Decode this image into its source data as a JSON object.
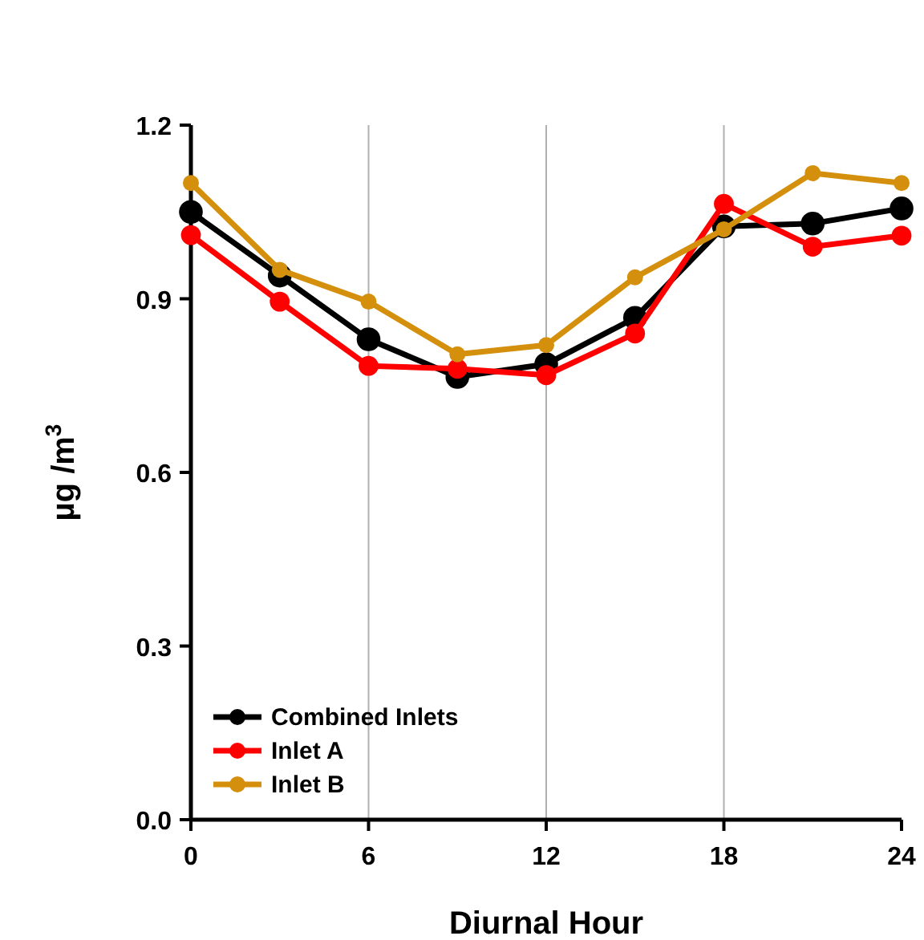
{
  "chart_data": {
    "type": "line",
    "xlabel": "Diurnal Hour",
    "ylabel": "µg /m$^{3}$",
    "x": [
      0,
      3,
      6,
      9,
      12,
      15,
      18,
      21,
      24
    ],
    "xlim": [
      0,
      24
    ],
    "xticks": [
      0,
      6,
      12,
      18,
      24
    ],
    "ylim": [
      0,
      1.2
    ],
    "yticks": [
      {
        "value": 0,
        "label": "0.0"
      },
      0.3,
      0.6,
      0.9,
      1.2
    ],
    "grid": "x",
    "legend": "bottom left",
    "marker": "circle",
    "line_style": "solid",
    "series": [
      {
        "name": "Combined Inlets",
        "color": "#000000",
        "values": [
          1.05,
          0.94,
          0.83,
          0.765,
          0.787,
          0.867,
          1.025,
          1.03,
          1.056
        ]
      },
      {
        "name": "Inlet A",
        "color": "#ff0000",
        "values": [
          1.01,
          0.895,
          0.784,
          0.779,
          0.768,
          0.84,
          1.064,
          0.99,
          1.009
        ]
      },
      {
        "name": "Inlet B",
        "color": "#d4900c",
        "values": [
          1.1,
          0.95,
          0.895,
          0.804,
          0.82,
          0.937,
          1.02,
          1.117,
          1.1
        ]
      }
    ]
  }
}
